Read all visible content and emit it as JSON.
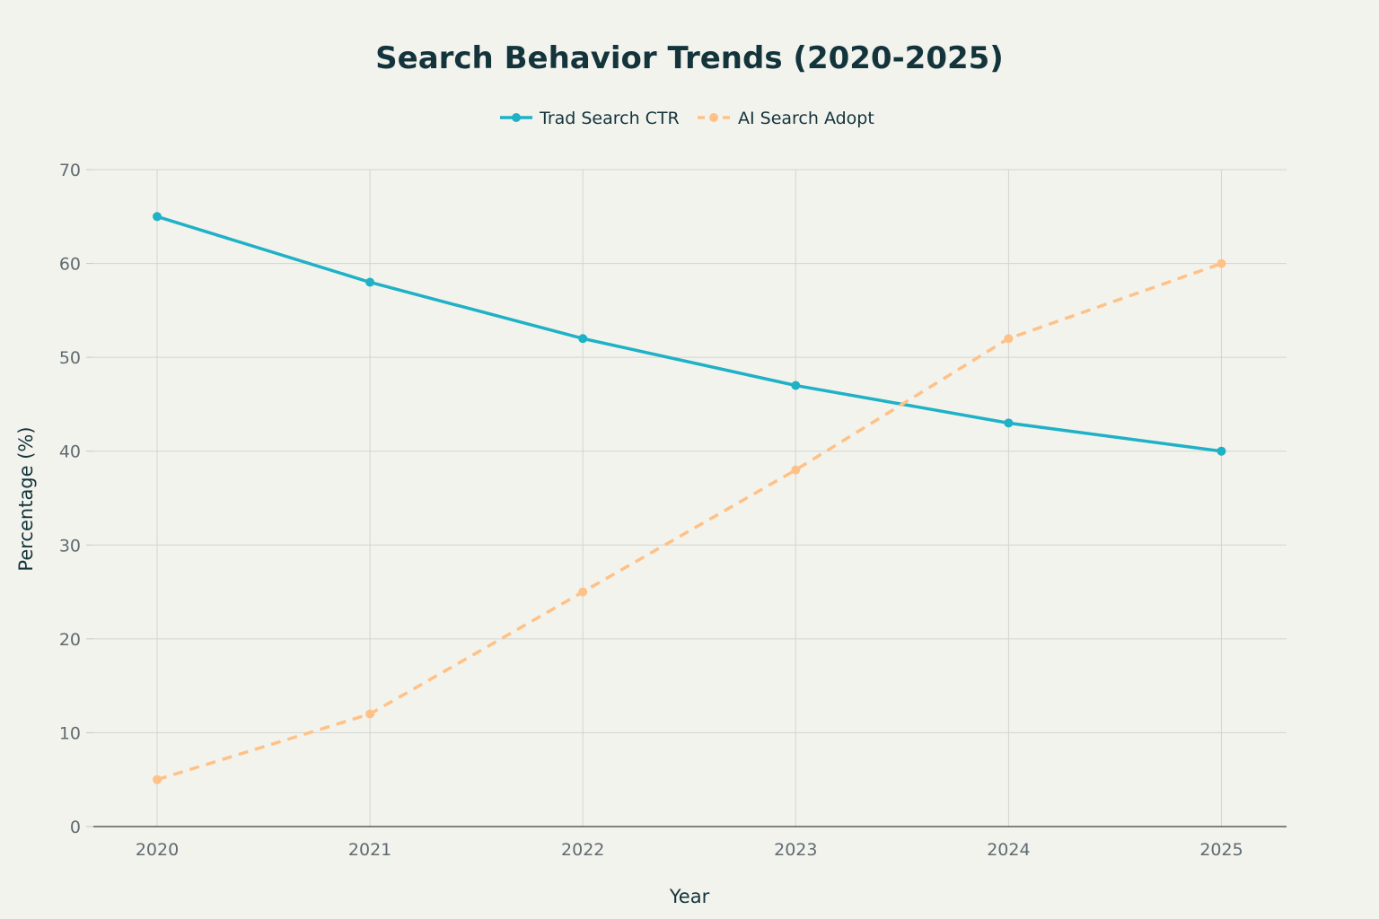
{
  "chart_data": {
    "type": "line",
    "title": "Search Behavior Trends (2020-2025)",
    "xlabel": "Year",
    "ylabel": "Percentage (%)",
    "categories": [
      "2020",
      "2021",
      "2022",
      "2023",
      "2024",
      "2025"
    ],
    "ylim": [
      0,
      70
    ],
    "y_ticks": [
      "0",
      "10",
      "20",
      "30",
      "40",
      "50",
      "60",
      "70"
    ],
    "grid": true,
    "legend_position": "top-center",
    "series": [
      {
        "name": "Trad Search CTR",
        "values": [
          65,
          58,
          52,
          47,
          43,
          40
        ],
        "color": "#1fb1c6",
        "line_style": "solid"
      },
      {
        "name": "AI Search Adopt",
        "values": [
          5,
          12,
          25,
          38,
          52,
          60
        ],
        "color": "#ffc185",
        "line_style": "dashed"
      }
    ]
  }
}
